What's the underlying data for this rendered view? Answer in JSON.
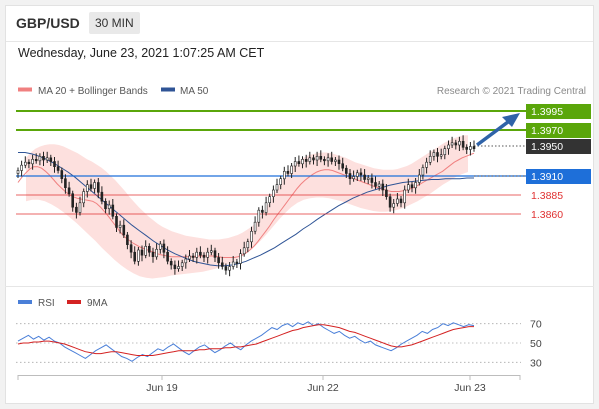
{
  "header": {
    "symbol": "GBP/USD",
    "timeframe": "30 MIN"
  },
  "datetime": "Wednesday, June 23, 2021 1:07:25 AM CET",
  "legend": {
    "ma20": "MA 20 + Bollinger Bands",
    "ma50": "MA 50",
    "ma20_color": "#f08080",
    "ma50_color": "#2f5496"
  },
  "credit": "Research © 2021 Trading Central",
  "chart_data": [
    {
      "type": "candlestick",
      "title": "",
      "ylim": [
        1.3775,
        1.4015
      ],
      "x_ticks": [
        "Jun 19",
        "Jun 22",
        "Jun 23"
      ],
      "levels": [
        {
          "value": "1.3995",
          "kind": "resistance",
          "color": "#5aa60a"
        },
        {
          "value": "1.3970",
          "kind": "resistance",
          "color": "#5aa60a"
        },
        {
          "value": "1.3950",
          "kind": "current",
          "color": "#333333"
        },
        {
          "value": "1.3910",
          "kind": "pivot",
          "color": "#1e6fd9"
        },
        {
          "value": "1.3885",
          "kind": "support",
          "color": "#e03131"
        },
        {
          "value": "1.3860",
          "kind": "support",
          "color": "#e03131"
        }
      ],
      "close": [
        1.3921,
        1.3928,
        1.3932,
        1.393,
        1.3936,
        1.3934,
        1.394,
        1.3935,
        1.3938,
        1.3933,
        1.3926,
        1.3921,
        1.391,
        1.3898,
        1.389,
        1.3872,
        1.3865,
        1.3878,
        1.3893,
        1.3902,
        1.3897,
        1.3905,
        1.3892,
        1.388,
        1.387,
        1.3875,
        1.386,
        1.3845,
        1.3848,
        1.3835,
        1.3822,
        1.3812,
        1.38,
        1.3815,
        1.3808,
        1.382,
        1.3812,
        1.3806,
        1.3816,
        1.3823,
        1.3812,
        1.38,
        1.3795,
        1.379,
        1.3793,
        1.3798,
        1.3803,
        1.3807,
        1.3805,
        1.3812,
        1.3808,
        1.3805,
        1.3812,
        1.3814,
        1.3805,
        1.3798,
        1.3793,
        1.3788,
        1.3793,
        1.3799,
        1.3797,
        1.381,
        1.3818,
        1.3826,
        1.384,
        1.3852,
        1.3868,
        1.3865,
        1.3878,
        1.3886,
        1.3895,
        1.3902,
        1.391,
        1.392,
        1.3917,
        1.3927,
        1.3933,
        1.393,
        1.3936,
        1.3933,
        1.3938,
        1.3935,
        1.394,
        1.3936,
        1.3934,
        1.3938,
        1.3933,
        1.3935,
        1.393,
        1.3924,
        1.3917,
        1.391,
        1.3913,
        1.3918,
        1.3915,
        1.3909,
        1.3911,
        1.3905,
        1.39,
        1.3903,
        1.3895,
        1.3886,
        1.3872,
        1.3877,
        1.3883,
        1.3878,
        1.3895,
        1.3902,
        1.3898,
        1.3905,
        1.3915,
        1.3925,
        1.3932,
        1.394,
        1.3945,
        1.394,
        1.3942,
        1.395,
        1.3955,
        1.3958,
        1.3955,
        1.396,
        1.3952,
        1.3949,
        1.3953,
        1.395
      ],
      "ma20": [
        1.3905,
        1.3912,
        1.3918,
        1.3923,
        1.3926,
        1.3926,
        1.3924,
        1.392,
        1.3915,
        1.3909,
        1.3903,
        1.3898,
        1.3893,
        1.3889,
        1.3886,
        1.3884,
        1.3883,
        1.3882,
        1.3881,
        1.388,
        1.3877,
        1.3872,
        1.3866,
        1.386,
        1.3853,
        1.3846,
        1.3839,
        1.3833,
        1.3829,
        1.3825,
        1.3822,
        1.3819,
        1.3817,
        1.3815,
        1.3813,
        1.3811,
        1.3809,
        1.3808,
        1.3807,
        1.3806,
        1.3806,
        1.3806,
        1.3806,
        1.3806,
        1.3806,
        1.3806,
        1.3807,
        1.3807,
        1.3807,
        1.3807,
        1.3807,
        1.3806,
        1.3805,
        1.3805,
        1.3805,
        1.3805,
        1.3806,
        1.3808,
        1.3811,
        1.3815,
        1.382,
        1.3826,
        1.3833,
        1.384,
        1.3847,
        1.3855,
        1.3862,
        1.3869,
        1.3876,
        1.3883,
        1.389,
        1.3897,
        1.3903,
        1.3908,
        1.3912,
        1.3916,
        1.3919,
        1.3921,
        1.3922,
        1.3922,
        1.3921,
        1.3919,
        1.3917,
        1.3915,
        1.3913,
        1.3911,
        1.3909,
        1.3907,
        1.3905,
        1.3903,
        1.3901,
        1.3899,
        1.3897,
        1.3896,
        1.3894,
        1.3893,
        1.3893,
        1.3893,
        1.3894,
        1.3895,
        1.3897,
        1.3899,
        1.3902,
        1.3905,
        1.3908,
        1.3911,
        1.3914,
        1.3917,
        1.392,
        1.3924,
        1.3928,
        1.3932,
        1.3935,
        1.3938,
        1.394,
        1.3942,
        1.3944
      ],
      "bb_upper": [
        1.3938,
        1.3945,
        1.395,
        1.3953,
        1.3955,
        1.3956,
        1.3956,
        1.3955,
        1.3953,
        1.395,
        1.3947,
        1.3944,
        1.394,
        1.3936,
        1.3933,
        1.3929,
        1.3925,
        1.392,
        1.3914,
        1.3908,
        1.3901,
        1.3894,
        1.3886,
        1.3879,
        1.3872,
        1.3866,
        1.386,
        1.3855,
        1.385,
        1.3846,
        1.3843,
        1.384,
        1.3838,
        1.3836,
        1.3834,
        1.3833,
        1.3832,
        1.3831,
        1.383,
        1.3829,
        1.3829,
        1.3829,
        1.383,
        1.3831,
        1.3833,
        1.3835,
        1.3838,
        1.3842,
        1.3846,
        1.3852,
        1.386,
        1.387,
        1.3881,
        1.3892,
        1.3903,
        1.3913,
        1.3922,
        1.3929,
        1.3934,
        1.3938,
        1.3941,
        1.3943,
        1.3944,
        1.3945,
        1.3945,
        1.3944,
        1.3942,
        1.394,
        1.3938,
        1.3935,
        1.3932,
        1.393,
        1.3928,
        1.3926,
        1.3924,
        1.3923,
        1.3922,
        1.3922,
        1.3922,
        1.3923,
        1.3925,
        1.3927,
        1.393,
        1.3934,
        1.3938,
        1.3942,
        1.3946,
        1.395,
        1.3954,
        1.3958,
        1.3961,
        1.3964,
        1.3966,
        1.3968,
        1.3968
      ],
      "bb_lower": [
        1.388,
        1.3882,
        1.3882,
        1.388,
        1.3876,
        1.3871,
        1.3865,
        1.3858,
        1.3851,
        1.3843,
        1.3835,
        1.3827,
        1.3818,
        1.381,
        1.3802,
        1.3795,
        1.3789,
        1.3784,
        1.378,
        1.3778,
        1.3777,
        1.3778,
        1.3779,
        1.3781,
        1.3782,
        1.3783,
        1.3784,
        1.3785,
        1.3786,
        1.3788,
        1.379,
        1.3793,
        1.3796,
        1.38,
        1.3805,
        1.3811,
        1.3818,
        1.3826,
        1.3835,
        1.3845,
        1.3855,
        1.3864,
        1.3872,
        1.3878,
        1.3882,
        1.3884,
        1.3885,
        1.3885,
        1.3884,
        1.3882,
        1.388,
        1.3877,
        1.3874,
        1.3871,
        1.3869,
        1.3867,
        1.3866,
        1.3866,
        1.3867,
        1.3869,
        1.3872,
        1.3876,
        1.388,
        1.3885,
        1.389,
        1.3896,
        1.3902,
        1.3907,
        1.3912,
        1.3916,
        1.3919
      ],
      "ma50": [
        1.3945,
        1.3945,
        1.3943,
        1.394,
        1.3936,
        1.3931,
        1.3925,
        1.3919,
        1.3912,
        1.3904,
        1.3896,
        1.3888,
        1.388,
        1.3872,
        1.3864,
        1.3856,
        1.3848,
        1.3841,
        1.3834,
        1.3827,
        1.3821,
        1.3815,
        1.381,
        1.3806,
        1.3802,
        1.3799,
        1.3797,
        1.3795,
        1.3794,
        1.3794,
        1.3795,
        1.3797,
        1.38,
        1.3804,
        1.3808,
        1.3813,
        1.3818,
        1.3824,
        1.383,
        1.3836,
        1.3843,
        1.3849,
        1.3856,
        1.3862,
        1.3868,
        1.3874,
        1.3879,
        1.3884,
        1.3888,
        1.3892,
        1.3895,
        1.3898,
        1.3901,
        1.3903,
        1.3905,
        1.3906,
        1.3907,
        1.3908,
        1.3909,
        1.3909,
        1.391,
        1.391,
        1.391,
        1.3911,
        1.3911
      ]
    },
    {
      "type": "line",
      "title": "",
      "legend": [
        "RSI",
        "9MA"
      ],
      "series_colors": [
        "#4a7fd8",
        "#d42222"
      ],
      "y_ticks": [
        "70",
        "50",
        "30"
      ],
      "ylim": [
        22,
        78
      ],
      "rsi": [
        52,
        55,
        58,
        54,
        57,
        53,
        56,
        52,
        50,
        46,
        43,
        40,
        37,
        34,
        38,
        42,
        45,
        48,
        44,
        40,
        36,
        34,
        31,
        35,
        38,
        36,
        40,
        44,
        42,
        46,
        49,
        45,
        41,
        38,
        42,
        46,
        48,
        44,
        40,
        43,
        47,
        50,
        46,
        43,
        48,
        52,
        55,
        58,
        62,
        66,
        64,
        68,
        70,
        67,
        71,
        69,
        72,
        68,
        70,
        66,
        63,
        60,
        62,
        58,
        55,
        57,
        53,
        50,
        52,
        48,
        46,
        44,
        42,
        45,
        49,
        52,
        55,
        58,
        62,
        60,
        64,
        66,
        70,
        68,
        71,
        69,
        67,
        69,
        68
      ],
      "ma9": [
        49,
        50,
        50,
        51,
        51,
        52,
        52,
        51,
        50,
        49,
        47,
        45,
        43,
        41,
        40,
        39,
        39,
        40,
        41,
        41,
        40,
        39,
        38,
        37,
        37,
        37,
        37,
        38,
        39,
        40,
        41,
        42,
        42,
        42,
        42,
        43,
        43,
        44,
        44,
        44,
        45,
        45,
        46,
        46,
        47,
        48,
        49,
        51,
        53,
        55,
        57,
        59,
        61,
        63,
        64,
        66,
        67,
        68,
        69,
        69,
        68,
        67,
        66,
        64,
        62,
        61,
        59,
        57,
        55,
        53,
        51,
        49,
        47,
        46,
        46,
        47,
        48,
        50,
        52,
        54,
        56,
        58,
        60,
        62,
        64,
        65,
        66,
        67,
        67
      ]
    }
  ]
}
